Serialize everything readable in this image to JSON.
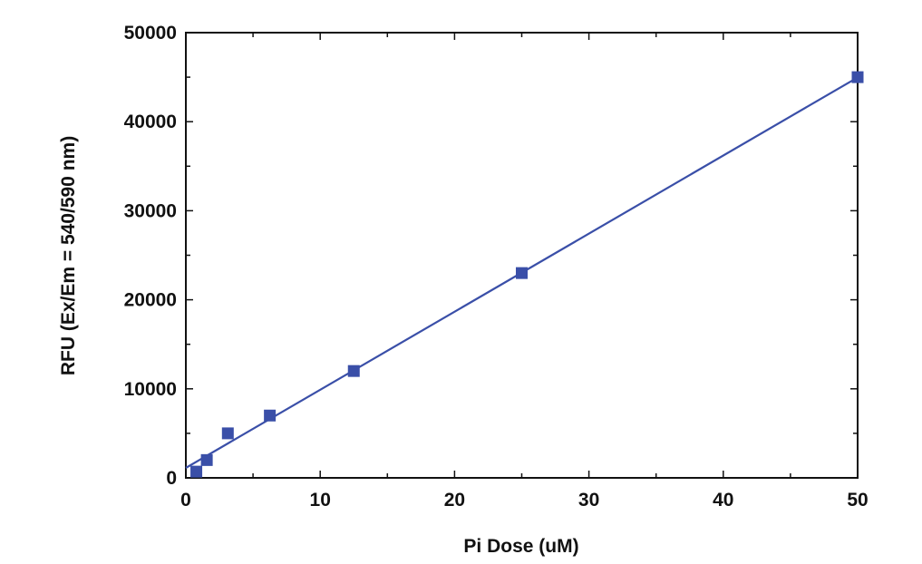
{
  "chart_data": {
    "type": "scatter",
    "title": "",
    "xlabel": "Pi Dose (uM)",
    "ylabel": "RFU (Ex/Em = 540/590 nm)",
    "xlim": [
      0,
      50
    ],
    "ylim": [
      0,
      50000
    ],
    "xticks": [
      0,
      10,
      20,
      30,
      40,
      50
    ],
    "yticks": [
      0,
      10000,
      20000,
      30000,
      40000,
      50000
    ],
    "xminor_step": 5,
    "yminor_step": 5000,
    "grid": false,
    "legend": "none",
    "series": [
      {
        "x": [
          0.78,
          1.56,
          3.125,
          6.25,
          12.5,
          25,
          50
        ],
        "y": [
          700,
          2000,
          5000,
          7000,
          12000,
          23000,
          45000
        ],
        "marker": "square",
        "color": "#3a4fa8"
      }
    ],
    "fit_line": {
      "x": [
        0,
        50
      ],
      "y": [
        1120,
        44970
      ],
      "color": "#3a4fa8"
    }
  }
}
